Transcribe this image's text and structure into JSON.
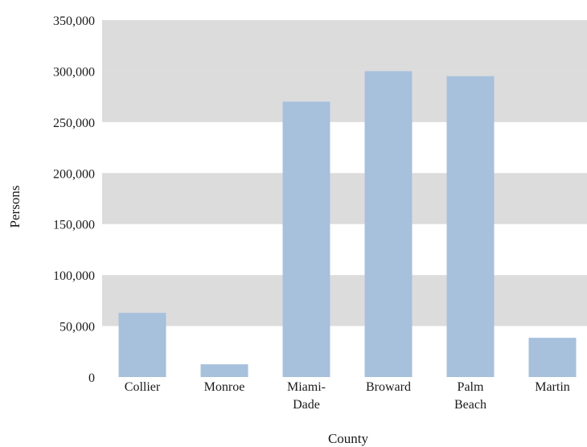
{
  "chart_data": {
    "type": "bar",
    "title": "",
    "xlabel": "County",
    "ylabel": "Persons",
    "categories": [
      [
        "Collier"
      ],
      [
        "Monroe"
      ],
      [
        "Miami-",
        "Dade"
      ],
      [
        "Broward"
      ],
      [
        "Palm",
        "Beach"
      ],
      [
        "Martin"
      ]
    ],
    "values": [
      63000,
      12500,
      270000,
      300000,
      295000,
      38500
    ],
    "ylim": [
      0,
      350000
    ],
    "yticks": [
      0,
      50000,
      100000,
      150000,
      200000,
      250000,
      300000,
      350000
    ],
    "ytick_labels": [
      "0",
      "50,000",
      "100,000",
      "150,000",
      "200,000",
      "250,000",
      "300,000",
      "350,000"
    ],
    "grid": "alternating horizontal bands",
    "legend": "none"
  },
  "colors": {
    "bar": "#a7c0dc",
    "band": "#dcdcdc",
    "background": "#ffffff",
    "text": "#1a1a1a"
  }
}
